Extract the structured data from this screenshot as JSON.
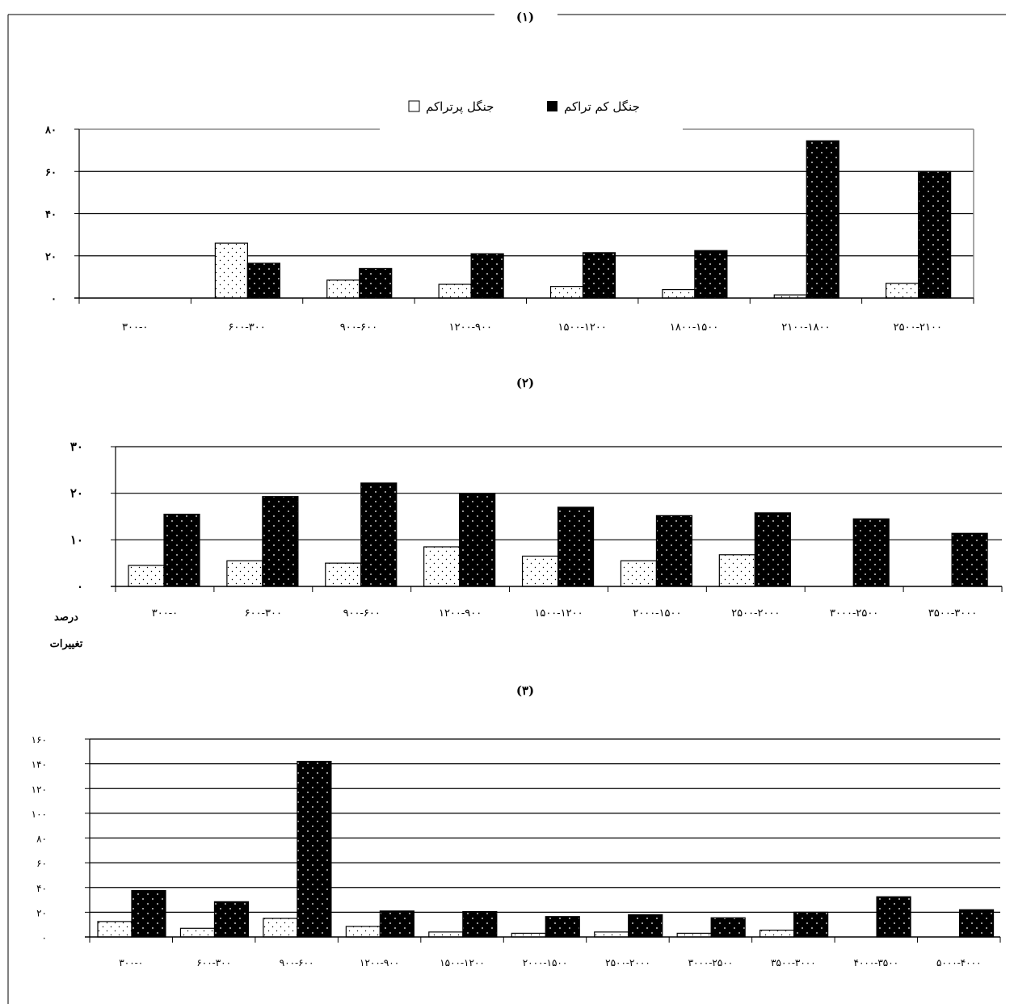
{
  "legend": {
    "dense_label": "جنگل پرتراکم",
    "sparse_label": "جنگل کم تراکم"
  },
  "side_label": {
    "line1": "درصد",
    "line2": "تغییرات"
  },
  "colors": {
    "sparse_fill": "#000000",
    "dense_fill": "#ffffff",
    "grid": "#000000",
    "frame": "#000000"
  },
  "chart_data": [
    {
      "type": "bar",
      "title": "(۱)",
      "categories": [
        "۳۰۰-۰",
        "۶۰۰-۳۰۰",
        "۹۰۰-۶۰۰",
        "۱۲۰۰-۹۰۰",
        "۱۵۰۰-۱۲۰۰",
        "۱۸۰۰-۱۵۰۰",
        "۲۱۰۰-۱۸۰۰",
        "۲۵۰۰-۲۱۰۰"
      ],
      "yticks": [
        "۰",
        "۲۰",
        "۴۰",
        "۶۰",
        "۸۰"
      ],
      "ylim": [
        0,
        80
      ],
      "series": [
        {
          "name": "جنگل پرتراکم",
          "values": [
            0,
            26,
            8.5,
            6.5,
            5.5,
            4,
            1.5,
            7
          ]
        },
        {
          "name": "جنگل کم تراکم",
          "values": [
            0,
            16.5,
            14,
            21,
            21.5,
            22.5,
            74.5,
            60
          ]
        }
      ],
      "legend": "top-center",
      "grid": true
    },
    {
      "type": "bar",
      "title": "(۲)",
      "categories": [
        "۳۰۰-۰",
        "۶۰۰-۳۰۰",
        "۹۰۰-۶۰۰",
        "۱۲۰۰-۹۰۰",
        "۱۵۰۰-۱۲۰۰",
        "۲۰۰۰-۱۵۰۰",
        "۲۵۰۰-۲۰۰۰",
        "۳۰۰۰-۲۵۰۰",
        "۳۵۰۰-۳۰۰۰"
      ],
      "yticks": [
        "۰",
        "۱۰",
        "۲۰",
        "۳۰"
      ],
      "ylim": [
        0,
        30
      ],
      "series": [
        {
          "name": "جنگل پرتراکم",
          "values": [
            4.5,
            5.5,
            5,
            8.5,
            6.5,
            5.5,
            6.8,
            0,
            0
          ]
        },
        {
          "name": "جنگل کم تراکم",
          "values": [
            15.5,
            19.3,
            22.2,
            20,
            17,
            15.2,
            15.8,
            14.5,
            11.4
          ]
        }
      ],
      "grid": true
    },
    {
      "type": "bar",
      "title": "(۳)",
      "categories": [
        "۳۰۰-۰",
        "۶۰۰-۳۰۰",
        "۹۰۰-۶۰۰",
        "۱۲۰۰-۹۰۰",
        "۱۵۰۰-۱۲۰۰",
        "۲۰۰۰-۱۵۰۰",
        "۲۵۰۰-۲۰۰۰",
        "۳۰۰۰-۲۵۰۰",
        "۳۵۰۰-۳۰۰۰",
        "۴۰۰۰-۳۵۰۰",
        "۵۰۰۰-۴۰۰۰"
      ],
      "yticks": [
        "۰",
        "۲۰",
        "۴۰",
        "۶۰",
        "۸۰",
        "۱۰۰",
        "۱۲۰",
        "۱۴۰",
        "۱۶۰"
      ],
      "ylim": [
        0,
        160
      ],
      "series": [
        {
          "name": "جنگل پرتراکم",
          "values": [
            12.5,
            7,
            15,
            8.5,
            4,
            3,
            4,
            3,
            5.5,
            0,
            0
          ]
        },
        {
          "name": "جنگل کم تراکم",
          "values": [
            37.5,
            28.5,
            142,
            21,
            20.5,
            16.5,
            18,
            15.5,
            20,
            32.5,
            22
          ]
        }
      ],
      "grid": true
    }
  ]
}
